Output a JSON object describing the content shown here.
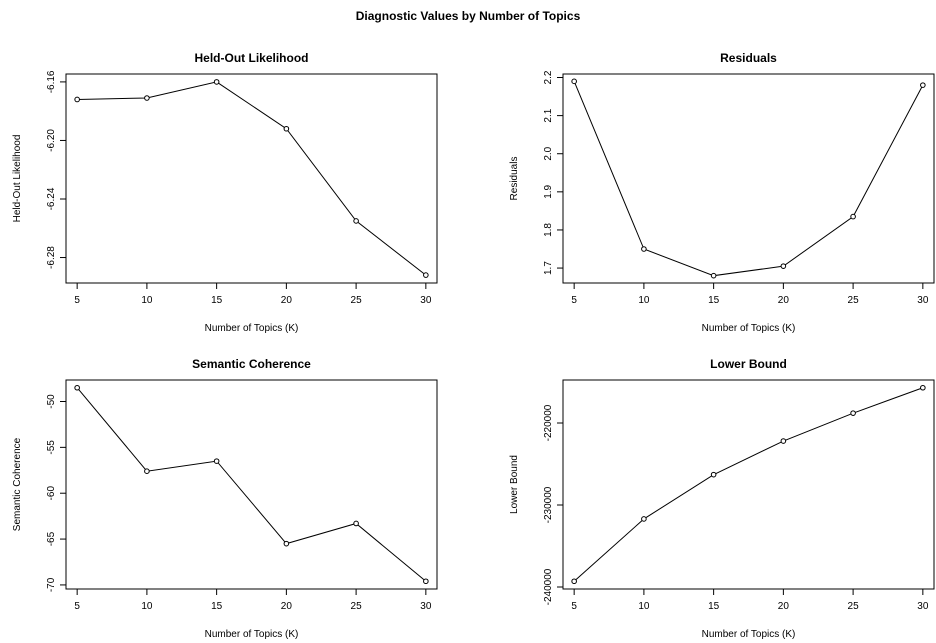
{
  "figure": {
    "title": "Diagnostic Values by Number of Topics"
  },
  "chart_data": [
    {
      "type": "line",
      "title": "Held-Out Likelihood",
      "xlabel": "Number of Topics (K)",
      "ylabel": "Held-Out Likelihood",
      "x": [
        5,
        10,
        15,
        20,
        25,
        30
      ],
      "y": [
        -6.172,
        -6.171,
        -6.16,
        -6.192,
        -6.255,
        -6.292
      ],
      "xticks": [
        5,
        10,
        15,
        20,
        25,
        30
      ],
      "yticks": [
        -6.28,
        -6.24,
        -6.2,
        -6.16
      ],
      "ytick_labels": [
        "-6.28",
        "-6.24",
        "-6.20",
        "-6.16"
      ],
      "xlim": [
        4.2,
        30.8
      ],
      "ylim": [
        -6.2974,
        -6.1546
      ],
      "grid": false
    },
    {
      "type": "line",
      "title": "Residuals",
      "xlabel": "Number of Topics (K)",
      "ylabel": "Residuals",
      "x": [
        5,
        10,
        15,
        20,
        25,
        30
      ],
      "y": [
        2.19,
        1.75,
        1.68,
        1.705,
        1.835,
        2.18
      ],
      "xticks": [
        5,
        10,
        15,
        20,
        25,
        30
      ],
      "yticks": [
        1.7,
        1.8,
        1.9,
        2.0,
        2.1,
        2.2
      ],
      "ytick_labels": [
        "1.7",
        "1.8",
        "1.9",
        "2.0",
        "2.1",
        "2.2"
      ],
      "xlim": [
        4.2,
        30.8
      ],
      "ylim": [
        1.6608,
        2.2092
      ],
      "grid": false
    },
    {
      "type": "line",
      "title": "Semantic Coherence",
      "xlabel": "Number of Topics (K)",
      "ylabel": "Semantic Coherence",
      "x": [
        5,
        10,
        15,
        20,
        25,
        30
      ],
      "y": [
        -48.5,
        -57.6,
        -56.5,
        -65.5,
        -63.3,
        -69.6
      ],
      "xticks": [
        5,
        10,
        15,
        20,
        25,
        30
      ],
      "yticks": [
        -70,
        -65,
        -60,
        -55,
        -50
      ],
      "ytick_labels": [
        "-70",
        "-65",
        "-60",
        "-55",
        "-50"
      ],
      "xlim": [
        4.2,
        30.8
      ],
      "ylim": [
        -70.444,
        -47.656
      ],
      "grid": false
    },
    {
      "type": "line",
      "title": "Lower Bound",
      "xlabel": "Number of Topics (K)",
      "ylabel": "Lower Bound",
      "x": [
        5,
        10,
        15,
        20,
        25,
        30
      ],
      "y": [
        -239300,
        -231700,
        -226300,
        -222200,
        -218800,
        -215700
      ],
      "xticks": [
        5,
        10,
        15,
        20,
        25,
        30
      ],
      "yticks": [
        -240000,
        -230000,
        -220000
      ],
      "ytick_labels": [
        "-240000",
        "-230000",
        "-220000"
      ],
      "xlim": [
        4.2,
        30.8
      ],
      "ylim": [
        -240244,
        -214756
      ],
      "grid": false
    }
  ]
}
